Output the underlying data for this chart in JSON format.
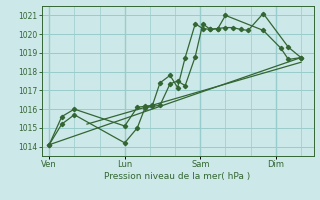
{
  "background_color": "#cce8e8",
  "grid_color": "#99cccc",
  "line_color": "#336633",
  "title": "Pression niveau de la mer( hPa )",
  "ylim": [
    1013.5,
    1021.5
  ],
  "yticks": [
    1014,
    1015,
    1016,
    1017,
    1018,
    1019,
    1020,
    1021
  ],
  "xtick_labels": [
    "Ven",
    "Lun",
    "Sam",
    "Dim"
  ],
  "xtick_positions": [
    0,
    3,
    6,
    9
  ],
  "xlim": [
    -0.3,
    10.5
  ],
  "series1_x": [
    0.0,
    0.5,
    1.0,
    3.0,
    3.5,
    3.8,
    4.1,
    4.4,
    4.8,
    5.1,
    5.4,
    5.8,
    6.1,
    6.4,
    6.7,
    7.0,
    7.3,
    7.6,
    7.9,
    8.5,
    9.5,
    10.0
  ],
  "series1_y": [
    1014.1,
    1015.2,
    1015.7,
    1014.2,
    1015.0,
    1016.05,
    1016.15,
    1016.2,
    1017.35,
    1017.5,
    1017.25,
    1018.8,
    1020.55,
    1020.25,
    1020.3,
    1020.35,
    1020.35,
    1020.25,
    1020.2,
    1021.1,
    1019.3,
    1018.75
  ],
  "series2_x": [
    0.0,
    0.5,
    1.0,
    3.0,
    3.5,
    3.8,
    4.1,
    4.4,
    4.8,
    5.1,
    5.4,
    5.8,
    6.1,
    6.4,
    6.7,
    7.0,
    8.5,
    9.2,
    9.5,
    10.0
  ],
  "series2_y": [
    1014.1,
    1015.6,
    1016.0,
    1015.1,
    1016.1,
    1016.15,
    1016.2,
    1017.4,
    1017.8,
    1017.15,
    1018.75,
    1020.55,
    1020.3,
    1020.25,
    1020.3,
    1021.0,
    1020.2,
    1019.25,
    1018.65,
    1018.75
  ],
  "trend1_x": [
    0.0,
    10.0
  ],
  "trend1_y": [
    1014.1,
    1018.75
  ],
  "trend2_x": [
    1.5,
    10.0
  ],
  "trend2_y": [
    1015.2,
    1018.5
  ]
}
